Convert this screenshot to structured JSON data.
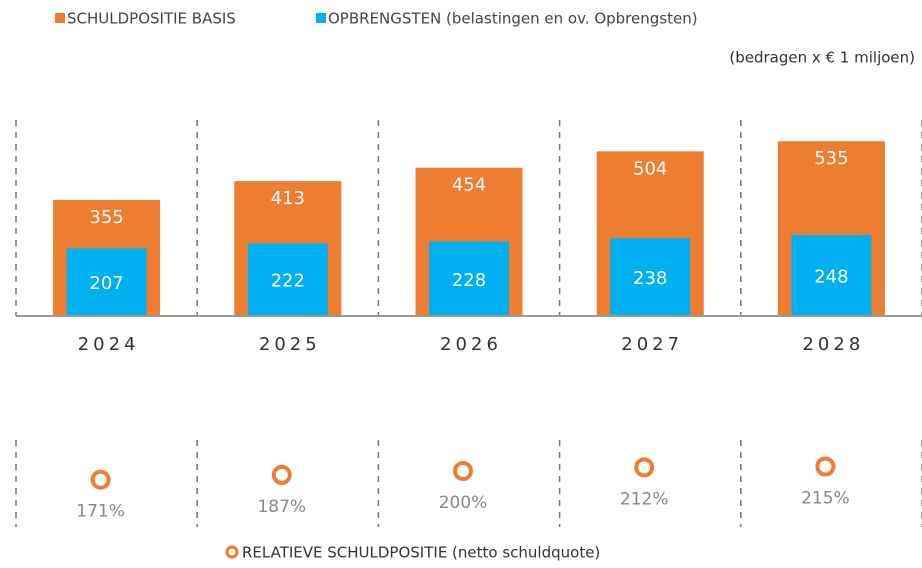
{
  "chart_data": [
    {
      "type": "bar",
      "note": "(bedragen x € 1 miljoen)",
      "categories": [
        "2024",
        "2025",
        "2026",
        "2027",
        "2028"
      ],
      "series": [
        {
          "name": "SCHULDPOSITIE BASIS",
          "color": "#ED7D31",
          "values": [
            355,
            413,
            454,
            504,
            535
          ]
        },
        {
          "name": "OPBRENGSTEN (belastingen en ov. Opbrengsten)",
          "color": "#00B0F0",
          "values": [
            207,
            222,
            228,
            238,
            248
          ]
        }
      ],
      "ylim": [
        0,
        600
      ]
    },
    {
      "type": "scatter",
      "series": [
        {
          "name": "RELATIEVE SCHULDPOSITIE (netto schuldquote)",
          "color": "#ED7D31",
          "values": [
            171,
            187,
            200,
            212,
            215
          ],
          "value_labels": [
            "171%",
            "187%",
            "200%",
            "212%",
            "215%"
          ]
        }
      ],
      "ylim": [
        100,
        300
      ]
    }
  ]
}
